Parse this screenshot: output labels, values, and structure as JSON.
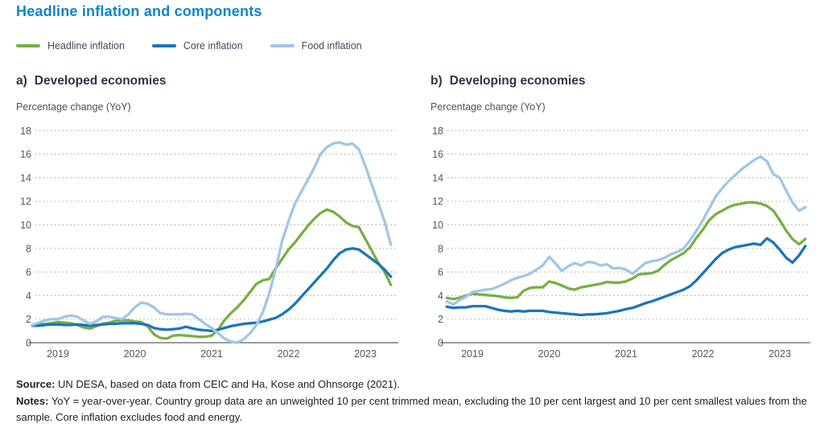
{
  "title": "Headline inflation and components",
  "colors": {
    "headline": "#76b043",
    "core": "#1c75ba",
    "food": "#a0c6e8",
    "title_blue": "#0d86c9",
    "grid_dot": "#b7a99a",
    "axis_gray": "#7a7a7a",
    "tick_text": "#57575c"
  },
  "legend": {
    "items": [
      {
        "label": "Headline inflation",
        "color_key": "headline"
      },
      {
        "label": "Core inflation",
        "color_key": "core"
      },
      {
        "label": "Food inflation",
        "color_key": "food"
      }
    ]
  },
  "panels": [
    {
      "prefix": "a)",
      "heading": "Developed economies",
      "axis_caption": "Percentage change (YoY)"
    },
    {
      "prefix": "b)",
      "heading": "Developing economies",
      "axis_caption": "Percentage change (YoY)"
    }
  ],
  "chart_data": [
    {
      "type": "line",
      "panel": "a",
      "title": "Developed economies",
      "ylabel": "Percentage change (YoY)",
      "ylim": [
        0,
        18
      ],
      "yticks": [
        0,
        2,
        4,
        6,
        8,
        10,
        12,
        14,
        16,
        18
      ],
      "grid": "dotted",
      "frequency": "monthly",
      "x_start": "2018-09",
      "x_end": "2023-05",
      "xticks": [
        "2019",
        "2020",
        "2021",
        "2022",
        "2023"
      ],
      "series": [
        {
          "name": "Headline inflation",
          "color_key": "headline",
          "values": [
            1.5,
            1.55,
            1.6,
            1.65,
            1.75,
            1.7,
            1.65,
            1.5,
            1.3,
            1.2,
            1.4,
            1.6,
            1.7,
            1.85,
            1.9,
            1.9,
            1.8,
            1.75,
            1.4,
            0.7,
            0.4,
            0.35,
            0.6,
            0.65,
            0.6,
            0.55,
            0.5,
            0.5,
            0.6,
            1.1,
            1.9,
            2.5,
            3.0,
            3.6,
            4.3,
            5.0,
            5.3,
            5.4,
            6.3,
            7.1,
            7.9,
            8.5,
            9.2,
            9.9,
            10.5,
            11.0,
            11.3,
            11.1,
            10.7,
            10.2,
            9.9,
            9.8,
            8.8,
            7.8,
            6.8,
            6.0,
            4.9
          ]
        },
        {
          "name": "Core inflation",
          "color_key": "core",
          "values": [
            1.45,
            1.45,
            1.5,
            1.55,
            1.55,
            1.5,
            1.5,
            1.55,
            1.5,
            1.45,
            1.5,
            1.55,
            1.6,
            1.6,
            1.65,
            1.65,
            1.65,
            1.6,
            1.5,
            1.25,
            1.15,
            1.1,
            1.15,
            1.2,
            1.35,
            1.2,
            1.1,
            1.05,
            1.0,
            1.1,
            1.25,
            1.4,
            1.5,
            1.6,
            1.65,
            1.7,
            1.8,
            1.95,
            2.1,
            2.4,
            2.8,
            3.3,
            3.9,
            4.5,
            5.1,
            5.7,
            6.3,
            7.0,
            7.6,
            7.9,
            8.0,
            7.9,
            7.5,
            7.1,
            6.7,
            6.2,
            5.6
          ]
        },
        {
          "name": "Food inflation",
          "color_key": "food",
          "values": [
            1.5,
            1.7,
            1.9,
            2.0,
            2.0,
            2.2,
            2.3,
            2.2,
            1.9,
            1.6,
            1.8,
            2.2,
            2.2,
            2.1,
            2.0,
            2.4,
            3.0,
            3.4,
            3.3,
            3.0,
            2.5,
            2.4,
            2.4,
            2.4,
            2.45,
            2.4,
            2.0,
            1.6,
            1.25,
            0.8,
            0.35,
            0.1,
            0.0,
            0.3,
            0.8,
            1.5,
            2.6,
            4.2,
            6.2,
            8.6,
            10.3,
            11.8,
            12.8,
            13.8,
            14.8,
            16.0,
            16.6,
            16.9,
            17.0,
            16.8,
            16.9,
            16.4,
            15.0,
            13.4,
            11.9,
            10.3,
            8.3
          ]
        }
      ]
    },
    {
      "type": "line",
      "panel": "b",
      "title": "Developing economies",
      "ylabel": "Percentage change (YoY)",
      "ylim": [
        0,
        18
      ],
      "yticks": [
        0,
        2,
        4,
        6,
        8,
        10,
        12,
        14,
        16,
        18
      ],
      "grid": "dotted",
      "frequency": "monthly",
      "x_start": "2018-09",
      "x_end": "2023-05",
      "xticks": [
        "2019",
        "2020",
        "2021",
        "2022",
        "2023"
      ],
      "series": [
        {
          "name": "Headline inflation",
          "color_key": "headline",
          "values": [
            3.8,
            3.7,
            3.8,
            4.0,
            4.15,
            4.1,
            4.05,
            4.0,
            3.95,
            3.85,
            3.8,
            3.85,
            4.4,
            4.65,
            4.7,
            4.7,
            5.2,
            5.05,
            4.85,
            4.6,
            4.5,
            4.7,
            4.8,
            4.9,
            5.0,
            5.15,
            5.1,
            5.1,
            5.2,
            5.45,
            5.8,
            5.85,
            5.9,
            6.1,
            6.6,
            7.0,
            7.3,
            7.6,
            8.1,
            8.9,
            9.6,
            10.4,
            10.9,
            11.2,
            11.5,
            11.7,
            11.8,
            11.9,
            11.9,
            11.8,
            11.6,
            11.2,
            10.4,
            9.5,
            8.8,
            8.35,
            8.8
          ]
        },
        {
          "name": "Core inflation",
          "color_key": "core",
          "values": [
            3.05,
            2.95,
            3.0,
            3.0,
            3.1,
            3.1,
            3.1,
            2.95,
            2.8,
            2.7,
            2.65,
            2.7,
            2.65,
            2.7,
            2.7,
            2.7,
            2.6,
            2.55,
            2.5,
            2.45,
            2.4,
            2.35,
            2.4,
            2.4,
            2.45,
            2.5,
            2.6,
            2.7,
            2.85,
            2.95,
            3.15,
            3.35,
            3.5,
            3.7,
            3.9,
            4.1,
            4.3,
            4.5,
            4.8,
            5.3,
            5.9,
            6.5,
            7.1,
            7.6,
            7.9,
            8.1,
            8.2,
            8.3,
            8.4,
            8.3,
            8.85,
            8.5,
            7.9,
            7.2,
            6.8,
            7.4,
            8.2
          ]
        },
        {
          "name": "Food inflation",
          "color_key": "food",
          "values": [
            3.5,
            3.25,
            3.6,
            3.9,
            4.3,
            4.4,
            4.5,
            4.55,
            4.75,
            5.0,
            5.3,
            5.5,
            5.65,
            5.85,
            6.2,
            6.55,
            7.3,
            6.7,
            6.1,
            6.5,
            6.75,
            6.55,
            6.85,
            6.8,
            6.55,
            6.65,
            6.3,
            6.35,
            6.2,
            5.85,
            6.3,
            6.75,
            6.9,
            7.0,
            7.2,
            7.5,
            7.7,
            8.0,
            8.7,
            9.5,
            10.4,
            11.4,
            12.4,
            13.1,
            13.7,
            14.2,
            14.7,
            15.1,
            15.5,
            15.8,
            15.4,
            14.3,
            14.0,
            12.9,
            11.9,
            11.2,
            11.5
          ]
        }
      ]
    }
  ],
  "footnote": {
    "source_label": "Source:",
    "source_text": " UN DESA, based on data from CEIC and Ha, Kose and Ohnsorge (2021).",
    "notes_label": "Notes:",
    "notes_text": " YoY = year-over-year. Country group data are an unweighted 10 per cent trimmed mean, excluding the 10 per cent largest and 10 per cent smallest values from the sample. Core inflation excludes food and energy."
  }
}
